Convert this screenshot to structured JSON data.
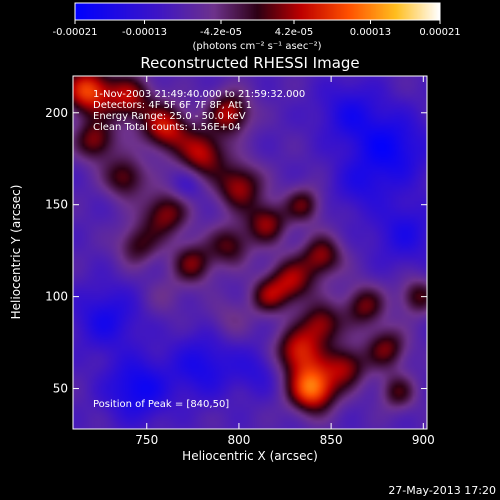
{
  "chart_data": {
    "type": "heatmap",
    "title": "Reconstructed RHESSI Image",
    "xlabel": "Heliocentric X (arcsec)",
    "ylabel": "Heliocentric Y (arcsec)",
    "xlim": [
      710,
      902
    ],
    "ylim": [
      28,
      220
    ],
    "x_ticks": [
      750,
      800,
      850,
      900
    ],
    "y_ticks": [
      50,
      100,
      150,
      200
    ],
    "colorbar": {
      "range": [
        -0.00021,
        0.00021
      ],
      "tick_values": [
        -0.00021,
        -0.00013,
        -4.2e-05,
        4.2e-05,
        0.00013,
        0.00021
      ],
      "tick_labels": [
        "-0.00021",
        "-0.00013",
        "-4.2e-05",
        "4.2e-05",
        "0.00013",
        "0.00021"
      ],
      "unit_label": "(photons cm⁻² s⁻¹ asec⁻²)"
    },
    "annotations": {
      "time": "1-Nov-2003 21:49:40.000 to 21:59:32.000",
      "detectors": "Detectors: 4F 5F 6F 7F 8F, Att 1",
      "energy": "Energy Range: 25.0 - 50.0 keV",
      "clean": "Clean    Total counts: 1.56E+04",
      "peak": "Position of Peak = [840,50]"
    },
    "peak": [
      840,
      50
    ],
    "sources": [
      {
        "x": 840,
        "y": 50,
        "w": 0.00021,
        "r": 9
      },
      {
        "x": 832,
        "y": 70,
        "w": 0.00015,
        "r": 9
      },
      {
        "x": 858,
        "y": 62,
        "w": 0.00012,
        "r": 8
      },
      {
        "x": 845,
        "y": 85,
        "w": 0.00012,
        "r": 8
      },
      {
        "x": 868,
        "y": 95,
        "w": 0.00011,
        "r": 8
      },
      {
        "x": 828,
        "y": 108,
        "w": 0.00013,
        "r": 9
      },
      {
        "x": 845,
        "y": 122,
        "w": 0.00012,
        "r": 8
      },
      {
        "x": 815,
        "y": 140,
        "w": 0.00012,
        "r": 8
      },
      {
        "x": 835,
        "y": 150,
        "w": 0.0001,
        "r": 7
      },
      {
        "x": 800,
        "y": 160,
        "w": 0.00013,
        "r": 9
      },
      {
        "x": 780,
        "y": 178,
        "w": 0.00014,
        "r": 9
      },
      {
        "x": 760,
        "y": 192,
        "w": 0.00015,
        "r": 9
      },
      {
        "x": 795,
        "y": 200,
        "w": 0.00014,
        "r": 8
      },
      {
        "x": 740,
        "y": 208,
        "w": 0.00013,
        "r": 9
      },
      {
        "x": 718,
        "y": 212,
        "w": 0.00018,
        "r": 9
      },
      {
        "x": 722,
        "y": 185,
        "w": 0.00012,
        "r": 8
      },
      {
        "x": 738,
        "y": 165,
        "w": 0.00011,
        "r": 8
      },
      {
        "x": 760,
        "y": 145,
        "w": 0.00012,
        "r": 9
      },
      {
        "x": 745,
        "y": 128,
        "w": 9e-05,
        "r": 8
      },
      {
        "x": 775,
        "y": 118,
        "w": 0.00011,
        "r": 8
      },
      {
        "x": 795,
        "y": 128,
        "w": 0.0001,
        "r": 8
      },
      {
        "x": 815,
        "y": 100,
        "w": 9e-05,
        "r": 7
      },
      {
        "x": 880,
        "y": 72,
        "w": 0.00011,
        "r": 8
      },
      {
        "x": 886,
        "y": 48,
        "w": 9e-05,
        "r": 7
      },
      {
        "x": 897,
        "y": 100,
        "w": 0.0001,
        "r": 7
      },
      {
        "x": 795,
        "y": 88,
        "w": 4e-05,
        "r": 8
      },
      {
        "x": 760,
        "y": 100,
        "w": 3e-05,
        "r": 8
      },
      {
        "x": 728,
        "y": 88,
        "w": -8e-05,
        "r": 12
      },
      {
        "x": 780,
        "y": 62,
        "w": -8e-05,
        "r": 12
      },
      {
        "x": 745,
        "y": 50,
        "w": -0.0001,
        "r": 12
      },
      {
        "x": 882,
        "y": 180,
        "w": -0.0001,
        "r": 14
      },
      {
        "x": 860,
        "y": 200,
        "w": -7e-05,
        "r": 12
      },
      {
        "x": 890,
        "y": 135,
        "w": -7e-05,
        "r": 12
      },
      {
        "x": 865,
        "y": 160,
        "w": -5e-05,
        "r": 10
      },
      {
        "x": 772,
        "y": 160,
        "w": -4e-05,
        "r": 6
      },
      {
        "x": 810,
        "y": 60,
        "w": -5e-05,
        "r": 9
      }
    ]
  },
  "footer": {
    "timestamp": "27-May-2013 17:20"
  }
}
